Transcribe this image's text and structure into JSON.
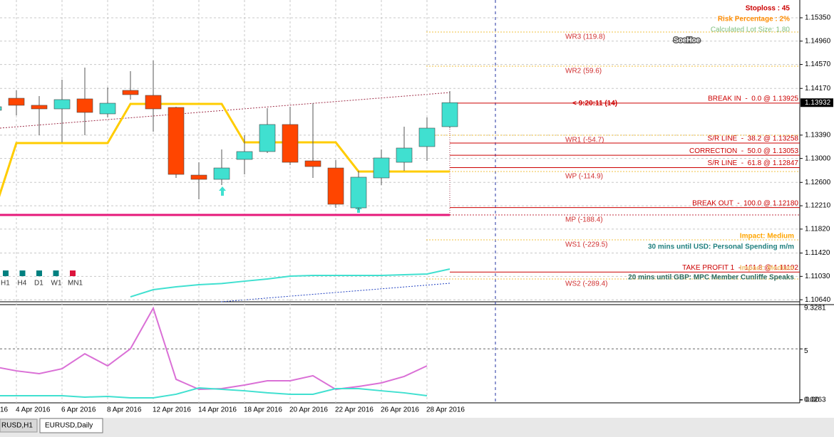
{
  "chart_data": {
    "type": "candlestick",
    "categories": [
      "16",
      "4 Apr 2016",
      null,
      "6 Apr 2016",
      null,
      "8 Apr 2016",
      null,
      "12 Apr 2016",
      null,
      "14 Apr 2016",
      null,
      "18 Apr 2016",
      null,
      "20 Apr 2016",
      null,
      "22 Apr 2016",
      null,
      "26 Apr 2016",
      null,
      "28 Apr 2016",
      null
    ],
    "open": [
      1.13805,
      1.14006,
      1.13888,
      1.13828,
      1.13995,
      1.13745,
      1.14137,
      1.14054,
      1.13852,
      1.12722,
      1.12651,
      1.12984,
      1.13115,
      1.13567,
      1.1296,
      1.12841,
      1.12175,
      1.12675,
      1.12936,
      1.13198,
      1.13531
    ],
    "high": [
      1.13888,
      1.14137,
      1.14042,
      1.14316,
      1.14518,
      1.14185,
      1.14458,
      1.14637,
      1.13864,
      1.12936,
      1.1315,
      1.13388,
      1.1384,
      1.13864,
      1.13923,
      1.12972,
      1.12794,
      1.1315,
      1.13531,
      1.13685,
      1.14125
    ],
    "low": [
      1.13769,
      1.13721,
      1.13388,
      1.13269,
      1.13388,
      1.13685,
      1.13983,
      1.13448,
      1.12675,
      1.12318,
      1.12556,
      1.12734,
      1.13091,
      1.12889,
      1.12675,
      1.12175,
      1.1214,
      1.12556,
      1.12794,
      1.1296,
      1.13507
    ],
    "close": [
      1.13864,
      1.13888,
      1.13828,
      1.13983,
      1.13769,
      1.13923,
      1.14066,
      1.13828,
      1.12734,
      1.12651,
      1.12841,
      1.13115,
      1.13567,
      1.12936,
      1.12865,
      1.12235,
      1.12687,
      1.13008,
      1.13174,
      1.13507,
      1.13932
    ],
    "up_color": "#40e0d0",
    "down_color": "#ff4500",
    "series": [
      {
        "color": "#ffcc00",
        "values": [
          1.12081,
          1.13257,
          1.13257,
          1.13257,
          1.13257,
          1.13257,
          1.13911,
          1.13911,
          1.13911,
          1.13911,
          1.13911,
          1.13269,
          1.13269,
          1.13269,
          1.13269,
          1.13269,
          1.12782,
          1.12782,
          1.12782,
          1.12782,
          1.12782
        ]
      },
      {
        "color": "#40e0d0",
        "values": [
          null,
          null,
          null,
          null,
          null,
          null,
          1.10689,
          1.10808,
          1.10856,
          1.10891,
          1.1091,
          1.1095,
          1.10986,
          1.11034,
          1.11046,
          1.11046,
          1.11046,
          1.11046,
          1.11058,
          1.1107,
          1.11153
        ]
      }
    ],
    "ylim": [
      1.10606,
      1.15647
    ],
    "yticks": [
      {
        "value": 1.1535,
        "label": "1.15350"
      },
      {
        "value": 1.1496,
        "label": "1.14960"
      },
      {
        "value": 1.1457,
        "label": "1.14570"
      },
      {
        "value": 1.1417,
        "label": "1.14170"
      },
      {
        "value": 1.1339,
        "label": "1.13390"
      },
      {
        "value": 1.13,
        "label": "1.13000"
      },
      {
        "value": 1.126,
        "label": "1.12600"
      },
      {
        "value": 1.1221,
        "label": "1.12210"
      },
      {
        "value": 1.1182,
        "label": "1.11820"
      },
      {
        "value": 1.1142,
        "label": "1.11420"
      },
      {
        "value": 1.1103,
        "label": "1.11030"
      },
      {
        "value": 1.1064,
        "label": "1.10640"
      }
    ],
    "current_price": 1.13932,
    "grid": true,
    "pivot_levels": [
      {
        "label": "WR3 (119.8)",
        "value": 1.15112,
        "color": "#f0c040"
      },
      {
        "label": "WR2 (59.6)",
        "value": 1.14542,
        "color": "#f0c040"
      },
      {
        "label": "WR1 (-54.7)",
        "value": 1.13388,
        "color": "#f0c040"
      },
      {
        "label": "WP (-114.9)",
        "value": 1.12782,
        "color": "#f0c040"
      },
      {
        "label": "MP (-188.4)",
        "value": 1.12057,
        "color": "#e6197a"
      },
      {
        "label": "WS1 (-229.5)",
        "value": 1.1164,
        "color": "#f0c040"
      },
      {
        "label": "WS2 (-289.4)",
        "value": 1.10986,
        "color": "#f0c040"
      }
    ],
    "fib_levels": [
      {
        "label": "BREAK IN  -  0.0 @ 1.13925",
        "value": 1.13925
      },
      {
        "label": "S/R LINE  -  38.2 @ 1.13258",
        "value": 1.13258
      },
      {
        "label": "CORRECTION  -  50.0 @ 1.13053",
        "value": 1.13053
      },
      {
        "label": "S/R LINE  -  61.8 @ 1.12847",
        "value": 1.12847
      },
      {
        "label": "BREAK OUT  -  100.0 @ 1.12180",
        "value": 1.1218
      },
      {
        "label": "TAKE PROFIT 1  -  161.8 @ 1.11102",
        "value": 1.11102
      }
    ],
    "countdown": "< 9:20:11 (14)",
    "info": [
      "Stoploss : 45",
      "Risk Percentage : 2%",
      "Calculated Lot Size: 1.80"
    ],
    "logo": "SoeHoe",
    "news": [
      {
        "impact": "Impact: Medium",
        "text": "30 mins until USD: Personal Spending m/m"
      },
      {
        "impact": "Impact: Medium",
        "text": "20 mins until GBP: MPC Member Cunliffe Speaks"
      }
    ],
    "timeframes": [
      {
        "label": "H1",
        "color": "#008080"
      },
      {
        "label": "H4",
        "color": "#008080"
      },
      {
        "label": "D1",
        "color": "#008080"
      },
      {
        "label": "W1",
        "color": "#008080"
      },
      {
        "label": "MN1",
        "color": "#dc143c"
      }
    ],
    "indicator": {
      "series": [
        {
          "color": "#da70d6",
          "values": [
            3.27,
            2.85,
            2.58,
            3.06,
            4.52,
            3.34,
            5.01,
            8.98,
            2.02,
            1.04,
            1.11,
            1.46,
            1.88,
            1.88,
            2.37,
            1.04,
            1.32,
            1.67,
            2.3,
            3.34,
            null
          ]
        },
        {
          "color": "#40e0d0",
          "values": [
            0.42,
            0.42,
            0.42,
            0.42,
            0.28,
            0.35,
            0.21,
            0.21,
            0.56,
            1.18,
            1.04,
            0.9,
            0.7,
            0.56,
            0.56,
            1.11,
            1.11,
            0.9,
            0.7,
            0.42,
            null
          ]
        }
      ],
      "ylim": [
        -0.21,
        9.33
      ],
      "yticks": [
        9.3281,
        5,
        0.0263,
        {
          "value": 0,
          "label": "0.00"
        }
      ],
      "level": 5
    },
    "tabs": [
      "RUSD,H1",
      "EURUSD,Daily"
    ]
  }
}
